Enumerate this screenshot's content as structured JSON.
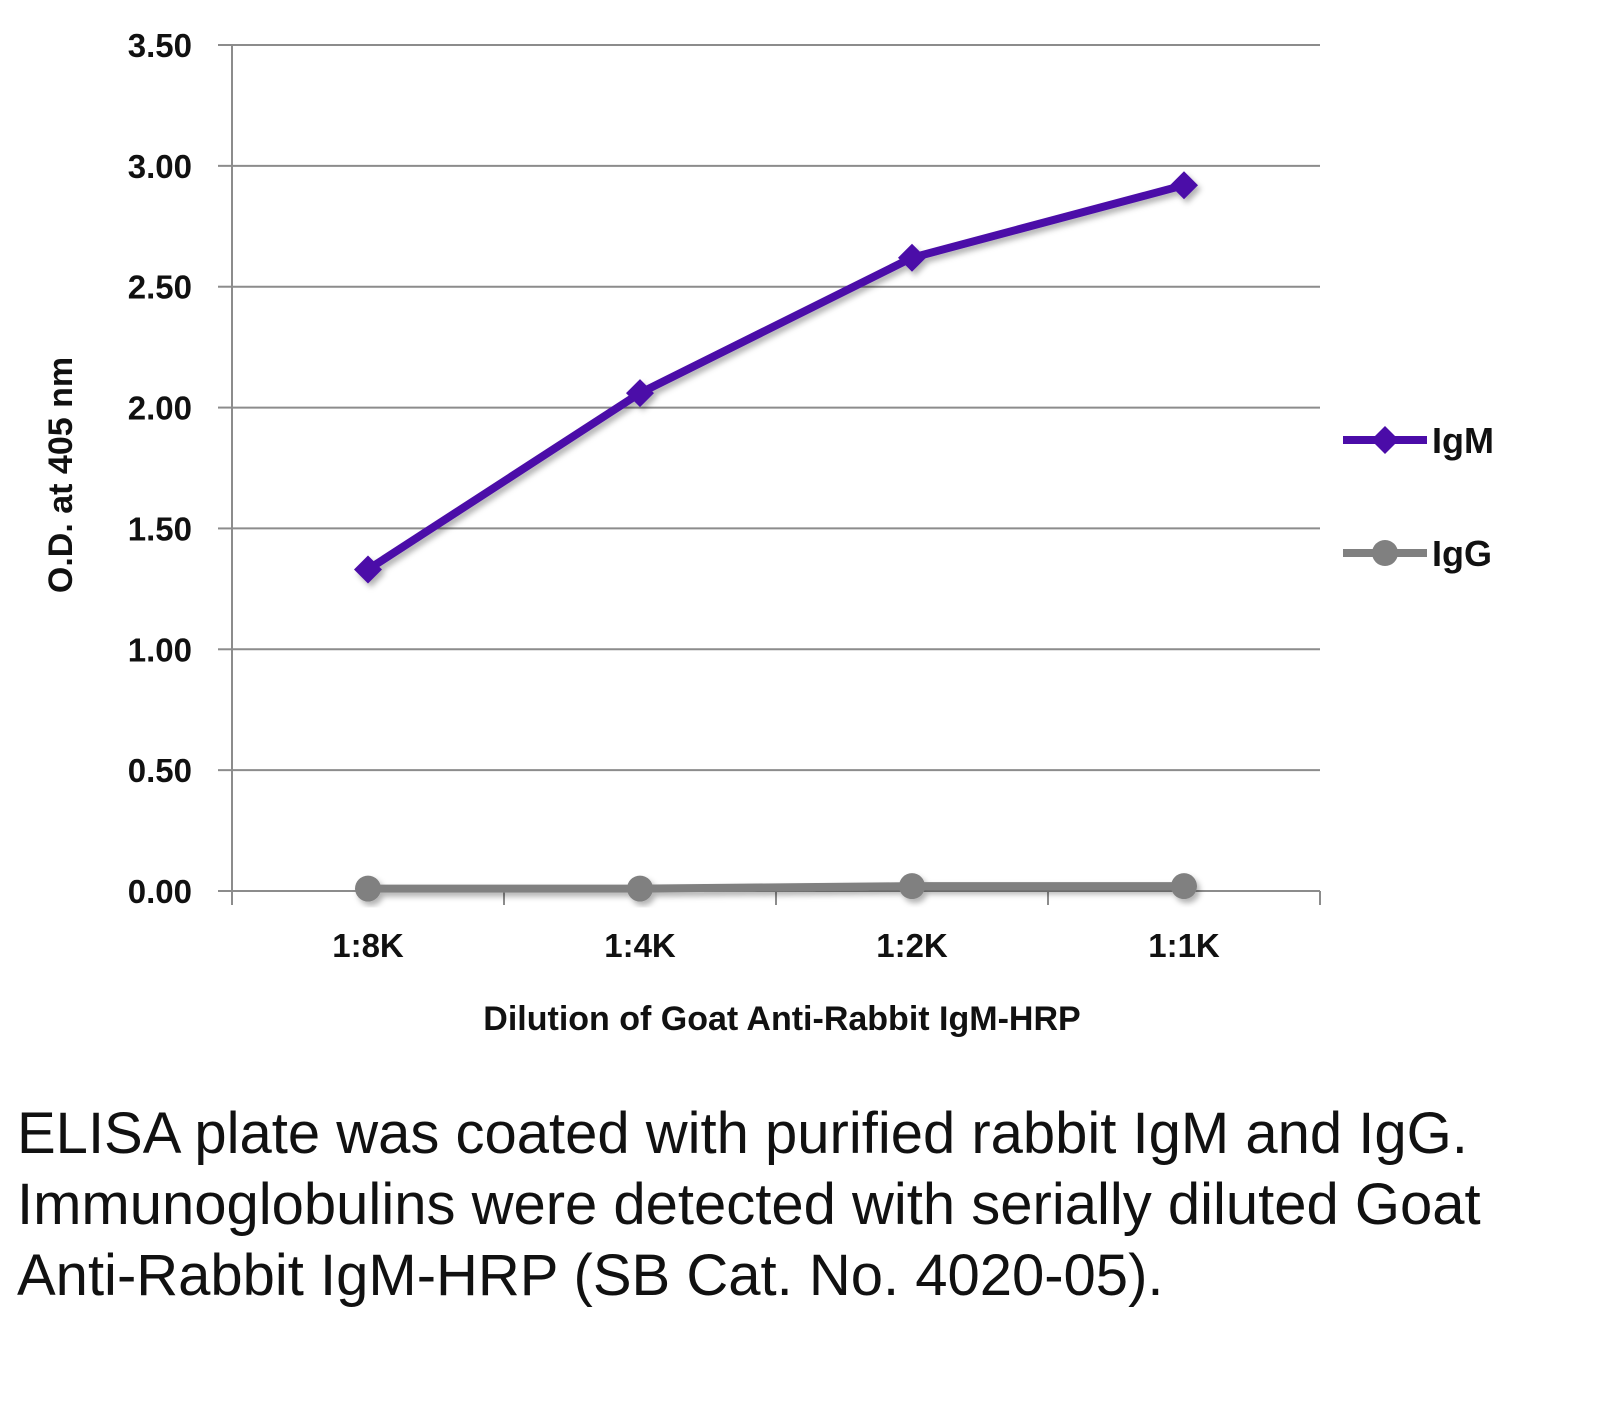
{
  "chart_data": {
    "type": "line",
    "title": "",
    "xlabel": "Dilution of Goat Anti-Rabbit IgM-HRP",
    "ylabel": "O.D. at 405 nm",
    "categories": [
      "1:8K",
      "1:4K",
      "1:2K",
      "1:1K"
    ],
    "ylim": [
      0,
      3.5
    ],
    "yticks": [
      "0.00",
      "0.50",
      "1.00",
      "1.50",
      "2.00",
      "2.50",
      "3.00",
      "3.50"
    ],
    "grid": "horizontal",
    "legend_position": "right",
    "series": [
      {
        "name": "IgM",
        "values": [
          1.33,
          2.06,
          2.62,
          2.92
        ],
        "color": "#4B0CA8",
        "marker": "diamond"
      },
      {
        "name": "IgG",
        "values": [
          0.01,
          0.01,
          0.02,
          0.02
        ],
        "color": "#808080",
        "marker": "circle"
      }
    ]
  },
  "caption": "ELISA plate was coated with purified rabbit IgM and IgG.  Immunoglobulins were detected with serially diluted Goat Anti-Rabbit IgM-HRP (SB Cat. No. 4020-05)."
}
